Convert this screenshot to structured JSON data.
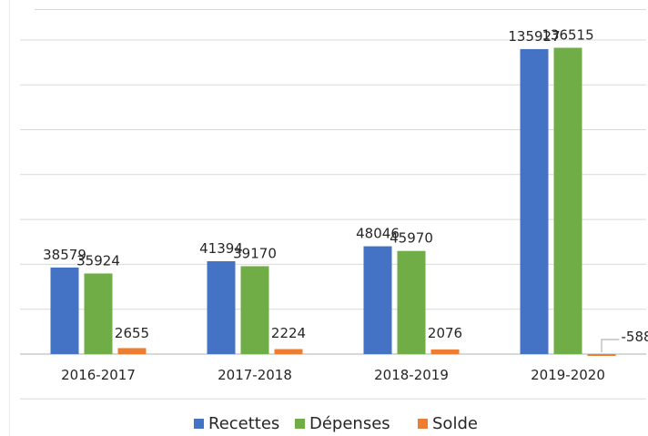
{
  "chart_data": {
    "type": "bar",
    "categories": [
      "2016-2017",
      "2017-2018",
      "2018-2019",
      "2019-2020"
    ],
    "series": [
      {
        "name": "Recettes",
        "values": [
          38579,
          41394,
          48046,
          135927
        ],
        "color": "#4472c4"
      },
      {
        "name": "Dépenses",
        "values": [
          35924,
          39170,
          45970,
          136515
        ],
        "color": "#70ad47"
      },
      {
        "name": "Solde",
        "values": [
          2655,
          2224,
          2076,
          -588
        ],
        "color": "#ed7d31"
      }
    ],
    "data_labels": [
      [
        "38579",
        "35924",
        "2655"
      ],
      [
        "41394",
        "39170",
        "2224"
      ],
      [
        "48046",
        "45970",
        "2076"
      ],
      [
        "135927",
        "136515",
        "-588"
      ]
    ],
    "ylim": [
      -20000,
      140000
    ],
    "grid": true,
    "legend_position": "bottom"
  }
}
